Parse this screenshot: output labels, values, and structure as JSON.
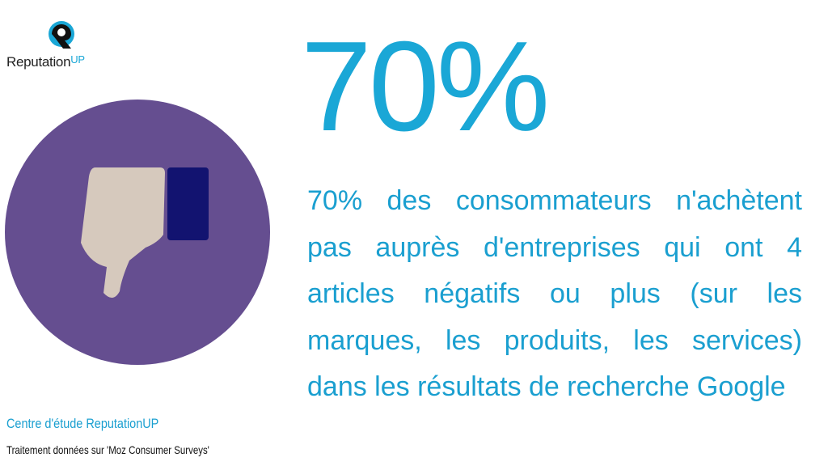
{
  "logo": {
    "name": "Reputation",
    "suffix": "UP"
  },
  "headline": "70%",
  "body": "70% des consommateurs n'achètent pas auprès d'entreprises qui ont 4 articles négatifs ou plus (sur les marques, les produits, les services) dans les résultats de recherche Google",
  "footer": {
    "source": "Centre d'étude ReputationUP",
    "note": "Traitement données sur 'Moz Consumer Surveys'"
  }
}
